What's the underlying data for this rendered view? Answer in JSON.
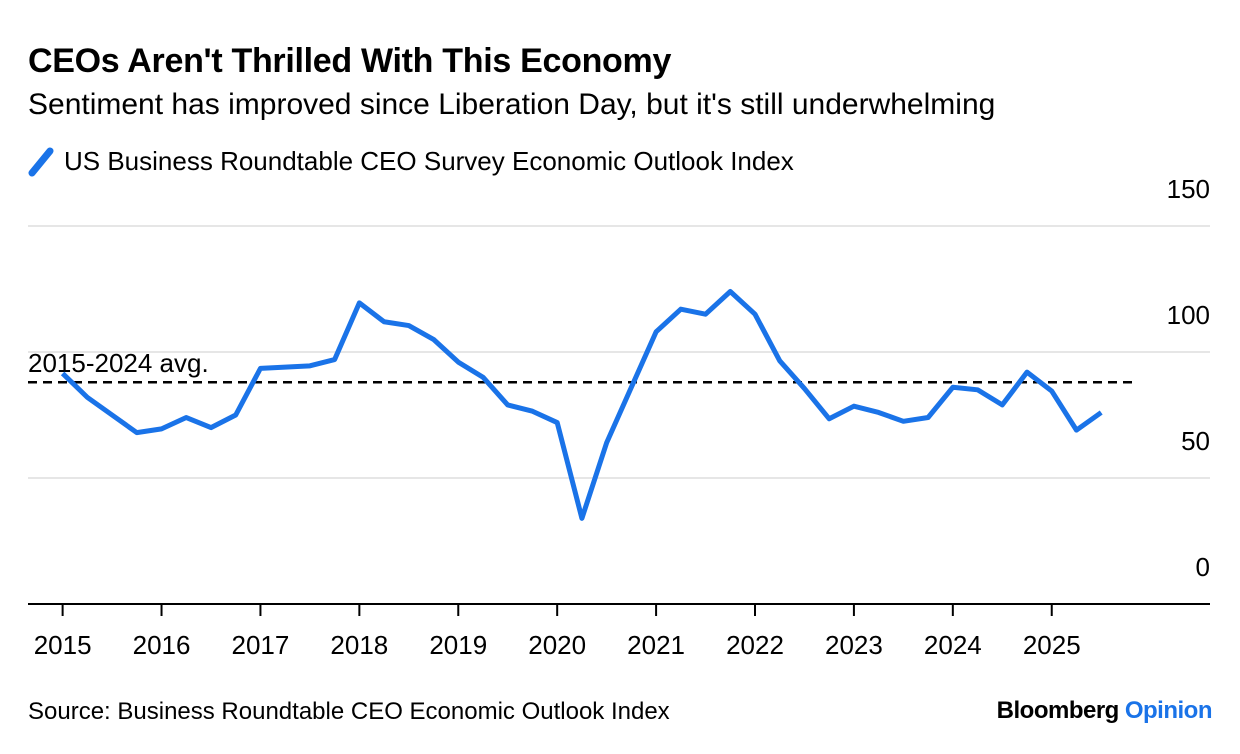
{
  "header": {
    "title": "CEOs Aren't Thrilled With This Economy",
    "subtitle": "Sentiment has improved since Liberation Day, but it's still underwhelming"
  },
  "legend": {
    "label": "US Business Roundtable CEO Survey Economic Outlook Index",
    "icon": "line-swatch-icon"
  },
  "footer": {
    "source": "Source: Business Roundtable CEO Economic Outlook Index",
    "brand_primary": "Bloomberg",
    "brand_secondary": "Opinion"
  },
  "colors": {
    "series": "#1A73E8",
    "text": "#000000",
    "grid": "#E6E6E6",
    "axis": "#000000",
    "reference": "#000000",
    "brand_accent": "#1A73E8"
  },
  "chart_data": {
    "type": "line",
    "title": "CEOs Aren't Thrilled With This Economy",
    "subtitle": "Sentiment has improved since Liberation Day, but it's still underwhelming",
    "xlabel": "",
    "ylabel": "",
    "ylim": [
      0,
      150
    ],
    "y_ticks": [
      0,
      50,
      100,
      150
    ],
    "x_ticks": [
      2015,
      2016,
      2017,
      2018,
      2019,
      2020,
      2021,
      2022,
      2023,
      2024,
      2025
    ],
    "xlim": [
      2014.65,
      2026.6
    ],
    "grid": true,
    "legend_position": "top-left",
    "reference_line": {
      "label": "2015-2024 avg.",
      "value": 88
    },
    "series": [
      {
        "name": "US Business Roundtable CEO Survey Economic Outlook Index",
        "x": [
          2015.0,
          2015.25,
          2015.5,
          2015.75,
          2016.0,
          2016.25,
          2016.5,
          2016.75,
          2017.0,
          2017.25,
          2017.5,
          2017.75,
          2018.0,
          2018.25,
          2018.5,
          2018.75,
          2019.0,
          2019.25,
          2019.5,
          2019.75,
          2020.0,
          2020.25,
          2020.5,
          2020.75,
          2021.0,
          2021.25,
          2021.5,
          2021.75,
          2022.0,
          2022.25,
          2022.5,
          2022.75,
          2023.0,
          2023.25,
          2023.5,
          2023.75,
          2024.0,
          2024.25,
          2024.5,
          2024.75,
          2025.0,
          2025.25,
          2025.5
        ],
        "values": [
          91.5,
          82,
          75,
          68,
          69.5,
          74,
          70,
          75,
          93.5,
          94,
          94.5,
          97,
          119.5,
          112,
          110.5,
          105,
          96,
          90,
          79,
          76.5,
          72,
          34,
          64,
          86,
          108,
          117,
          115,
          124,
          115,
          96.5,
          85.5,
          73.5,
          78.5,
          76,
          72.5,
          74,
          86,
          85,
          79,
          92,
          84.5,
          69,
          76
        ]
      }
    ]
  }
}
